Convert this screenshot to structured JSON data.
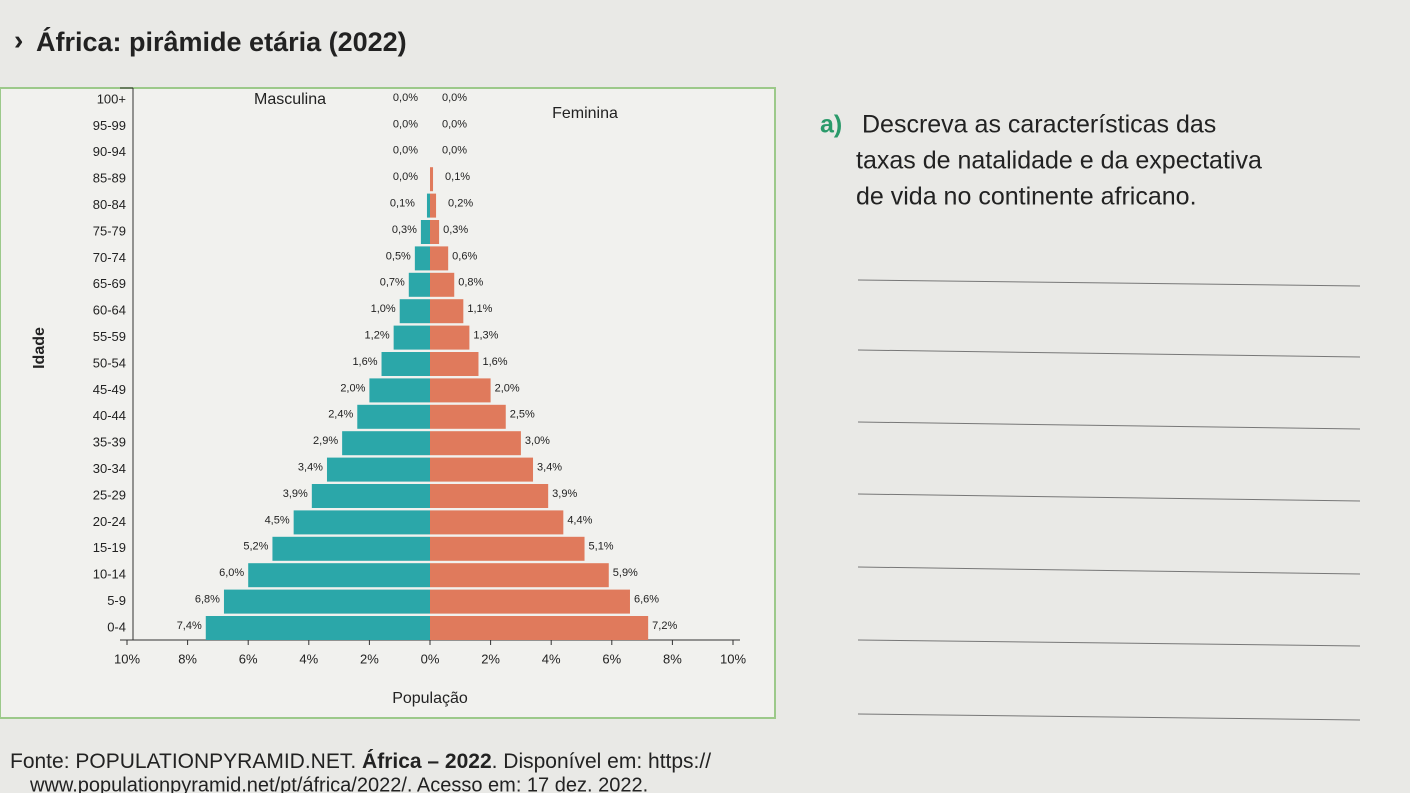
{
  "page": {
    "marker": "›",
    "title": "África: pirâmide etária (2022)",
    "question_letter": "a)",
    "question_lines": [
      "Descreva as características das",
      "taxas de natalidade e da expectativa",
      "de vida no continente africano."
    ],
    "source_parts": [
      "Fonte: POPULATIONPYRAMID.NET. ",
      "África – 2022",
      ". Disponível em: https://"
    ],
    "source_line2": "www.populationpyramid.net/pt/áfrica/2022/. Acesso em: 17 dez. 2022."
  },
  "chart_data": {
    "type": "population-pyramid",
    "x_label": "População",
    "y_label": "Idade",
    "categories": [
      "100+",
      "95-99",
      "90-94",
      "85-89",
      "80-84",
      "75-79",
      "70-74",
      "65-69",
      "60-64",
      "55-59",
      "50-54",
      "45-49",
      "40-44",
      "35-39",
      "30-34",
      "25-29",
      "20-24",
      "15-19",
      "10-14",
      "5-9",
      "0-4"
    ],
    "series": [
      {
        "name": "Masculina",
        "color": "#2ba7a9",
        "side": "left",
        "values": [
          0.0,
          0.0,
          0.0,
          0.0,
          0.1,
          0.3,
          0.5,
          0.7,
          1.0,
          1.2,
          1.6,
          2.0,
          2.4,
          2.9,
          3.4,
          3.9,
          4.5,
          5.2,
          6.0,
          6.8,
          7.4
        ],
        "value_labels": [
          "0,0%",
          "0,0%",
          "0,0%",
          "0,0%",
          "0,1%",
          "0,3%",
          "0,5%",
          "0,7%",
          "1,0%",
          "1,2%",
          "1,6%",
          "2,0%",
          "2,4%",
          "2,9%",
          "3,4%",
          "3,9%",
          "4,5%",
          "5,2%",
          "6,0%",
          "6,8%",
          "7,4%"
        ]
      },
      {
        "name": "Feminina",
        "color": "#e07a5c",
        "side": "right",
        "values": [
          0.0,
          0.0,
          0.0,
          0.1,
          0.2,
          0.3,
          0.6,
          0.8,
          1.1,
          1.3,
          1.6,
          2.0,
          2.5,
          3.0,
          3.4,
          3.9,
          4.4,
          5.1,
          5.9,
          6.6,
          7.2
        ],
        "value_labels": [
          "0,0%",
          "0,0%",
          "0,0%",
          "0,1%",
          "0,2%",
          "0,3%",
          "0,6%",
          "0,8%",
          "1,1%",
          "1,3%",
          "1,6%",
          "2,0%",
          "2,5%",
          "3,0%",
          "3,4%",
          "3,9%",
          "4,4%",
          "5,1%",
          "5,9%",
          "6,6%",
          "7,2%"
        ]
      }
    ],
    "xlim": [
      -10,
      10
    ],
    "xticks": [
      {
        "value": -10,
        "label": "10%"
      },
      {
        "value": -8,
        "label": "8%"
      },
      {
        "value": -6,
        "label": "6%"
      },
      {
        "value": -4,
        "label": "4%"
      },
      {
        "value": -2,
        "label": "2%"
      },
      {
        "value": 0,
        "label": "0%"
      },
      {
        "value": 2,
        "label": "2%"
      },
      {
        "value": 4,
        "label": "4%"
      },
      {
        "value": 6,
        "label": "6%"
      },
      {
        "value": 8,
        "label": "8%"
      },
      {
        "value": 10,
        "label": "10%"
      }
    ]
  }
}
